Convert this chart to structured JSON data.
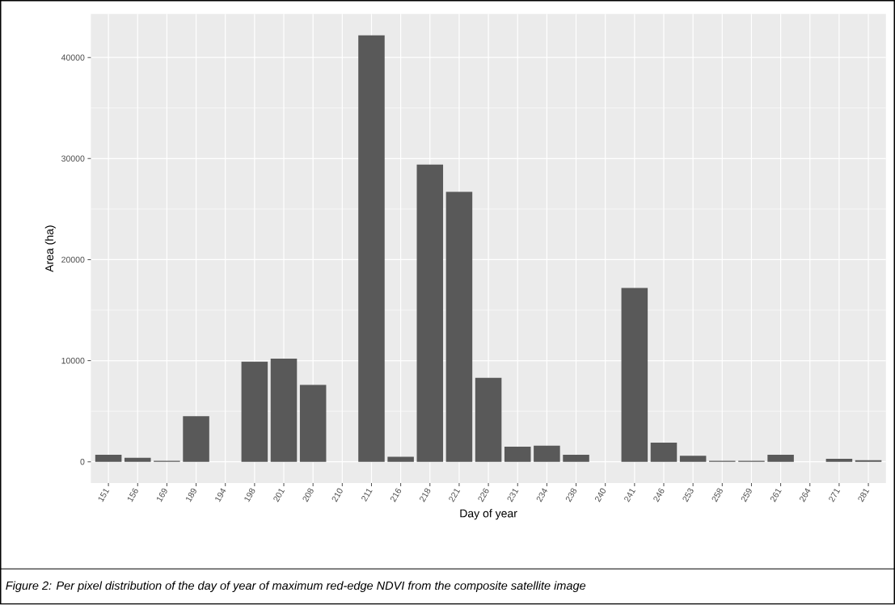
{
  "chart_data": {
    "type": "bar",
    "xlabel": "Day of year",
    "ylabel": "Area (ha)",
    "categories": [
      "151",
      "156",
      "169",
      "189",
      "194",
      "198",
      "201",
      "208",
      "210",
      "211",
      "216",
      "218",
      "221",
      "226",
      "231",
      "234",
      "238",
      "240",
      "241",
      "246",
      "253",
      "258",
      "259",
      "261",
      "264",
      "271",
      "281"
    ],
    "values": [
      700,
      400,
      100,
      4500,
      0,
      9900,
      10200,
      7600,
      0,
      42200,
      500,
      29400,
      26700,
      8300,
      1500,
      1600,
      700,
      0,
      17200,
      1900,
      600,
      100,
      100,
      700,
      0,
      300,
      150
    ],
    "color": "#595959",
    "ylim": [
      -2110,
      44310
    ],
    "yticks": [
      0,
      10000,
      20000,
      30000,
      40000
    ],
    "grid": true,
    "annotations": [
      "Figure 2: Per pixel distribution of the day of year of maximum red-edge NDVI from the composite satellite image"
    ]
  }
}
